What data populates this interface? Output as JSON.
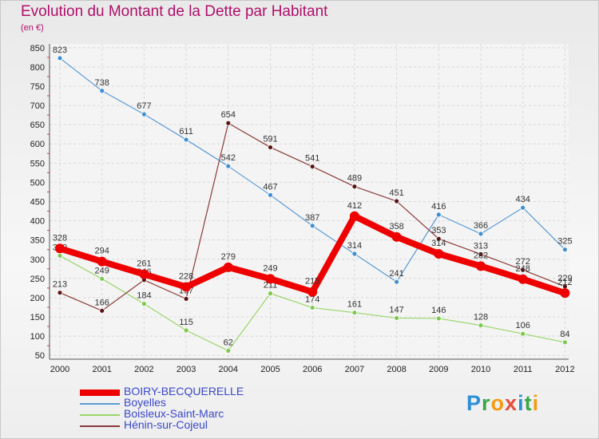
{
  "title": "Evolution du Montant de la Dette par Habitant",
  "subtitle": "(en €)",
  "logo": {
    "letters": [
      {
        "ch": "P",
        "color": "#2b8fd6"
      },
      {
        "ch": "r",
        "color": "#3aa64a"
      },
      {
        "ch": "o",
        "color": "#f39c12"
      },
      {
        "ch": "x",
        "color": "#e74c3c"
      },
      {
        "ch": "i",
        "color": "#2b8fd6"
      },
      {
        "ch": "t",
        "color": "#3aa64a"
      },
      {
        "ch": "i",
        "color": "#f39c12"
      }
    ]
  },
  "chart_data": {
    "type": "line",
    "title": "Evolution du Montant de la Dette par Habitant",
    "subtitle": "(en €)",
    "xlabel": "",
    "ylabel": "",
    "x": [
      "2000",
      "2001",
      "2002",
      "2003",
      "2004",
      "2005",
      "2006",
      "2007",
      "2008",
      "2009",
      "2010",
      "2011",
      "2012"
    ],
    "ylim": [
      40,
      860
    ],
    "yticks": [
      50,
      100,
      150,
      200,
      250,
      300,
      350,
      400,
      450,
      500,
      550,
      600,
      650,
      700,
      750,
      800,
      850
    ],
    "grid": true,
    "legend_position": "bottom-left",
    "series": [
      {
        "name": "Boyelles",
        "color": "#5b9bd5",
        "marker": "#3f8fd0",
        "width": 1.2,
        "point_r": 3,
        "values": [
          823,
          738,
          677,
          611,
          542,
          467,
          387,
          314,
          241,
          416,
          366,
          434,
          325
        ]
      },
      {
        "name": "Boisleux-Saint-Marc",
        "color": "#9ad66a",
        "marker": "#7cc94c",
        "width": 1.2,
        "point_r": 3,
        "values": [
          309,
          249,
          184,
          115,
          62,
          211,
          174,
          161,
          147,
          146,
          128,
          106,
          84
        ]
      },
      {
        "name": "Hénin-sur-Cojeul",
        "color": "#8b3a3a",
        "marker": "#5a1414",
        "width": 1.2,
        "point_r": 3,
        "values": [
          213,
          166,
          246,
          197,
          654,
          591,
          541,
          489,
          451,
          353,
          313,
          272,
          229
        ]
      },
      {
        "name": "BOIRY-BECQUERELLE",
        "color": "#ee0000",
        "marker": "#ee0000",
        "width": 8,
        "point_r": 6,
        "values": [
          328,
          294,
          261,
          228,
          279,
          249,
          215,
          412,
          358,
          314,
          282,
          248,
          212
        ]
      }
    ],
    "legend_order": [
      "BOIRY-BECQUERELLE",
      "Boyelles",
      "Boisleux-Saint-Marc",
      "Hénin-sur-Cojeul"
    ]
  }
}
